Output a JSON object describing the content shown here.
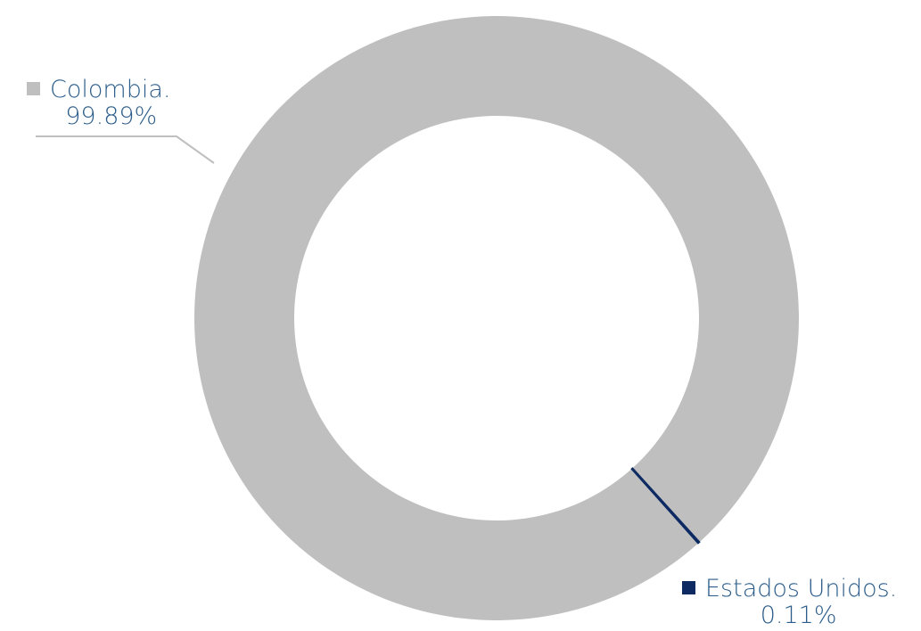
{
  "colors": {
    "colombia": "#bfbfbf",
    "estados_unidos": "#0d2a63",
    "label_text": "#2c5d8a",
    "leader_line": "#bfbfbf"
  },
  "chart_data": {
    "type": "pie",
    "donut": true,
    "title": "",
    "legend": "none",
    "slices": [
      {
        "label": "Colombia.",
        "value": 99.89,
        "display": "99.89%"
      },
      {
        "label": "Estados Unidos.",
        "value": 0.11,
        "display": "0.11%"
      }
    ]
  }
}
